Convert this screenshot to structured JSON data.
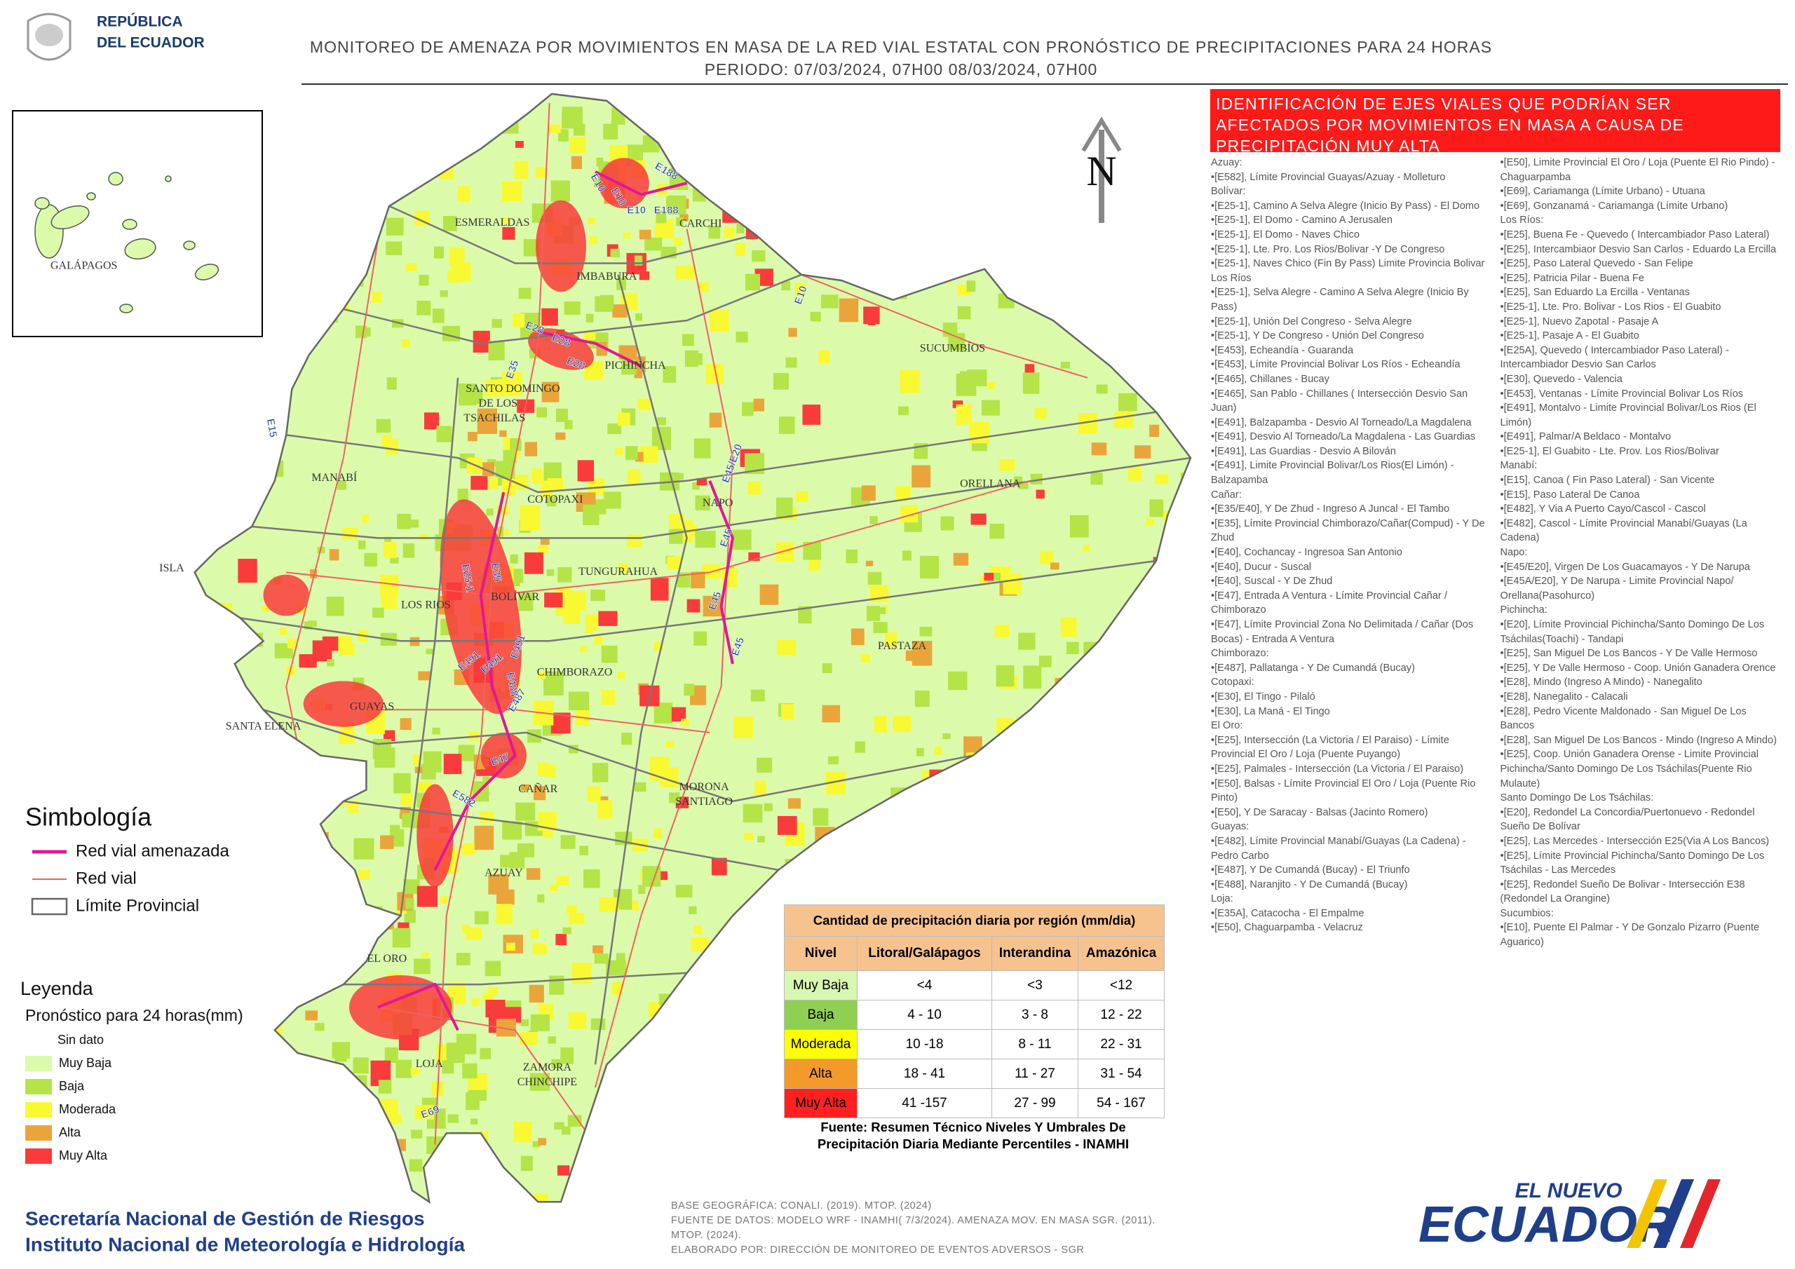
{
  "header": {
    "logo_text": [
      "REPÚBLICA",
      "DEL ECUADOR"
    ],
    "title": [
      "MONITOREO DE AMENAZA POR MOVIMIENTOS EN MASA DE LA RED VIAL  ESTATAL  CON PRONÓSTICO  DE  PRECIPITACIONES PARA 24 HORAS",
      "PERIODO: 07/03/2024, 07H00 08/03/2024, 07H00"
    ]
  },
  "inset": {
    "label": "GALÁPAGOS"
  },
  "map": {
    "north": "N",
    "province_labels": [
      "ESMERALDAS",
      "CARCHI",
      "IMBABURA",
      "SUCUMBÍOS",
      "PICHINCHA",
      "SANTO DOMINGO",
      "DE LOS",
      "TSACHILAS",
      "MANABÍ",
      "ORELLANA",
      "COTOPAXI",
      "NAPO",
      "ISLA",
      "LOS RIOS",
      "BOLÍVAR",
      "TUNGURAHUA",
      "PASTAZA",
      "CHIMBORAZO",
      "SANTA ELENA",
      "GUAYAS",
      "CAÑAR",
      "MORONA",
      "SANTIAGO",
      "AZUAY",
      "EL ORO",
      "LOJA",
      "ZAMORA",
      "CHINCHIPE"
    ],
    "road_labels": [
      "E10",
      "E188",
      "E10",
      "E188",
      "E10",
      "E10",
      "E28",
      "E28",
      "E28",
      "E35",
      "E15",
      "E45/E20",
      "E45",
      "E45",
      "E45",
      "E25-1",
      "E35",
      "E491",
      "E491",
      "E491",
      "E487",
      "E488",
      "E47",
      "E582",
      "E69"
    ]
  },
  "affected_roads": {
    "title": "IDENTIFICACIÓN DE EJES VIALES QUE PODRÍAN SER AFECTADOS POR MOVIMIENTOS EN MASA A CAUSA DE PRECIPITACIÓN MUY ALTA",
    "items": [
      "Azuay:",
      "•[E582], Límite Provincial Guayas/Azuay - Molleturo",
      "Bolívar:",
      "•[E25-1], Camino A Selva Alegre (Inicio By Pass) - El Domo",
      "•[E25-1], El Domo - Camino A Jerusalen",
      "•[E25-1], El Domo - Naves Chico",
      "•[E25-1], Lte. Pro. Los Rios/Bolivar -Y De Congreso",
      "•[E25-1], Naves Chico (Fin By Pass) Limite Provincia Bolivar Los Ríos",
      "•[E25-1], Selva Alegre - Camino A Selva Alegre (Inicio By Pass)",
      "•[E25-1], Unión Del Congreso - Selva  Alegre",
      "•[E25-1], Y De Congreso - Unión Del Congreso",
      "•[E453], Echeandía - Guaranda",
      "•[E453], Límite Provincial Bolivar Los Ríos - Echeandía",
      "•[E465], Chillanes - Bucay",
      "•[E465], San Pablo - Chillanes ( Intersección Desvio San Juan)",
      "•[E491], Balzapamba - Desvio Al Torneado/La Magdalena",
      "•[E491], Desvio Al Torneado/La Magdalena - Las Guardias",
      "•[E491], Las Guardias - Desvio A Bilován",
      "•[E491], Limite Provincial Bolivar/Los Rios(El Limón) - Balzapamba",
      "Cañar:",
      "•[E35/E40], Y De Zhud - Ingreso A Juncal - El Tambo",
      "•[E35], Límite Provincial Chimborazo/Cañar(Compud) - Y De Zhud",
      "•[E40], Cochancay - Ingresoa San Antonio",
      "•[E40], Ducur - Suscal",
      "•[E40], Suscal - Y De Zhud",
      "•[E47], Entrada A Ventura -  Límite Provincial Cañar / Chimborazo",
      "•[E47], Límite Provincial Zona No Delimitada / Cañar (Dos Bocas) - Entrada  A Ventura",
      "Chimborazo:",
      "•[E487], Pallatanga - Y De Cumandá (Bucay)",
      "Cotopaxi:",
      "•[E30], El Tingo - Pilaló",
      "•[E30], La Maná - El Tingo",
      "El Oro:",
      "•[E25], Intersección (La Victoria / El Paraiso) - Límite Provincial El Oro / Loja (Puente Puyango)",
      "•[E25], Palmales - Intersección (La Victoria / El Paraiso)",
      "•[E50], Balsas - Límite Provincial El Oro / Loja (Puente Rio Pinto)",
      "•[E50], Y De Saracay - Balsas (Jacinto Romero)",
      "Guayas:",
      "•[E482], Límite Provincial Manabí/Guayas (La Cadena) - Pedro Carbo",
      "•[E487], Y De Cumandá (Bucay) - El Triunfo",
      "•[E488], Naranjito - Y De Cumandá (Bucay)",
      "Loja:",
      "•[E35A], Catacocha - El Empalme",
      "•[E50], Chaguarpamba - Velacruz",
      "•[E50], Limite Provincial El Oro / Loja (Puente El Rio Pindo) - Chaguarpamba",
      "•[E69], Cariamanga (Límite Urbano) - Utuana",
      "•[E69], Gonzanamá - Cariamanga (Límite Urbano)",
      "Los Ríos:",
      "•[E25], Buena Fe - Quevedo ( Intercambiador Paso Lateral)",
      "•[E25], Intercambiaor Desvio  San Carlos - Eduardo La Ercilla",
      "•[E25], Paso Lateral Quevedo - San Felipe",
      "•[E25], Patricia Pilar - Buena Fe",
      "•[E25], San Eduardo La Ercilla - Ventanas",
      "•[E25-1], Lte. Pro. Bolivar - Los Rios - El Guabito",
      "•[E25-1], Nuevo Zapotal - Pasaje A",
      "•[E25-1], Pasaje A - El Guabito",
      "•[E25A], Quevedo ( Intercambiador Paso Lateral) - Intercambiador Desvio  San Carlos",
      "•[E30], Quevedo - Valencia",
      "•[E453], Ventanas - Límite Provincial Bolivar Los Ríos",
      "•[E491], Montalvo - Limite Provincial Bolivar/Los Rios (El Limón)",
      "•[E491], Palmar/A Beldaco - Montalvo",
      "•[E25-1], El Guabito - Lte. Prov. Los Rios/Bolivar",
      "Manabí:",
      "•[E15], Canoa ( Fin Paso Lateral) - San Vicente",
      "•[E15], Paso Lateral De Canoa",
      "•[E482], Y Via A Puerto Cayo/Cascol - Cascol",
      "•[E482], Cascol - Límite Provincial Manabí/Guayas (La Cadena)",
      "Napo:",
      "•[E45/E20], Virgen De Los Guacamayos - Y De Narupa",
      "•[E45A/E20], Y De Narupa - Limite Provincial Napo/ Orellana(Pasohurco)",
      "Pichincha:",
      "•[E20], Límite Provincial Pichincha/Santo Domingo De Los Tsáchilas(Toachi) - Tandapi",
      "•[E25], San Miguel De Los Bancos - Y De Valle Hermoso",
      "•[E25], Y De Valle Hermoso - Coop. Unión Ganadera Orence",
      "•[E28], Mindo (Ingreso A Mindo) - Nanegalito",
      "•[E28], Nanegalito - Calacali",
      "•[E28], Pedro Vicente Maldonado - San Miguel De Los Bancos",
      "•[E28], San Miguel De Los Bancos - Mindo (Ingreso A Mindo)",
      "•[E25], Coop. Unión Ganadera Orense - Limite Provincial Pichincha/Santo Domingo De Los Tsáchilas(Puente Rio Mulaute)",
      "Santo Domingo De Los Tsáchilas:",
      "•[E20], Redondel La Concordia/Puertonuevo - Redondel Sueño De Bolívar",
      "•[E25], Las Mercedes - Intersección E25(Via A Los Bancos)",
      "•[E25], Límite Provincial Pichincha/Santo Domingo De Los Tsáchilas - Las Mercedes",
      "•[E25], Redondel Sueño De Bolivar - Intersección E38 (Redondel La Orangine)",
      "Sucumbios:",
      "•[E10], Puente El Palmar - Y De Gonzalo Pizarro (Puente Aguarico)"
    ]
  },
  "symbology": {
    "title": "Simbología",
    "items": [
      {
        "label": "Red vial amenazada",
        "color": "#e0179a"
      },
      {
        "label": "Red vial",
        "color": "#f26060"
      },
      {
        "label": "Límite Provincial",
        "color": "#666666"
      }
    ]
  },
  "legend": {
    "title": "Leyenda",
    "subtitle": "Pronóstico para 24 horas(mm)",
    "items": [
      {
        "label": "Sin dato"
      },
      {
        "label": "Muy Baja",
        "color": "#dbfbab"
      },
      {
        "label": "Baja",
        "color": "#b4e446"
      },
      {
        "label": "Moderada",
        "color": "#f9f933"
      },
      {
        "label": "Alta",
        "color": "#eaa53a"
      },
      {
        "label": "Muy Alta",
        "color": "#fa3b3b"
      }
    ]
  },
  "precip_table": {
    "title": "Cantidad de precipitación diaria por región (mm/dia)",
    "columns": [
      "Nivel",
      "Litoral/Galápagos",
      "Interandina",
      "Amazónica"
    ],
    "rows": [
      {
        "level": "Muy Baja",
        "color": "#d8f7b0",
        "values": [
          "<4",
          "<3",
          "<12"
        ]
      },
      {
        "level": "Baja",
        "color": "#8fcf52",
        "values": [
          "4 - 10",
          "3 - 8",
          "12 - 22"
        ]
      },
      {
        "level": "Moderada",
        "color": "#ffff00",
        "values": [
          "10 -18",
          "8 - 11",
          "22 - 31"
        ]
      },
      {
        "level": "Alta",
        "color": "#f39a2b",
        "values": [
          "18 - 41",
          "11 - 27",
          "31 - 54"
        ]
      },
      {
        "level": "Muy Alta",
        "color": "#ff2020",
        "values": [
          "41 -157",
          "27 - 99",
          "54 - 167"
        ]
      }
    ],
    "source": [
      "Fuente: Resumen Técnico Niveles Y Umbrales De",
      "Precipitación Diaria Mediante Percentiles - INAMHI"
    ]
  },
  "footer": {
    "institutions": [
      "Secretaría Nacional de Gestión de Riesgos",
      "Instituto Nacional de Meteorología e Hidrología"
    ],
    "credits": [
      "BASE GEOGRÁFICA: CONALI. (2019). MTOP. (2024)",
      "FUENTE DE DATOS: MODELO WRF - INAMHI( 7/3/2024).  AMENAZA MOV. EN MASA SGR. (2011).",
      "MTOP. (2024).",
      "ELABORADO POR: DIRECCIÓN DE MONITOREO DE EVENTOS ADVERSOS - SGR"
    ],
    "logo": [
      "EL NUEVO",
      "ECUADOR"
    ]
  }
}
